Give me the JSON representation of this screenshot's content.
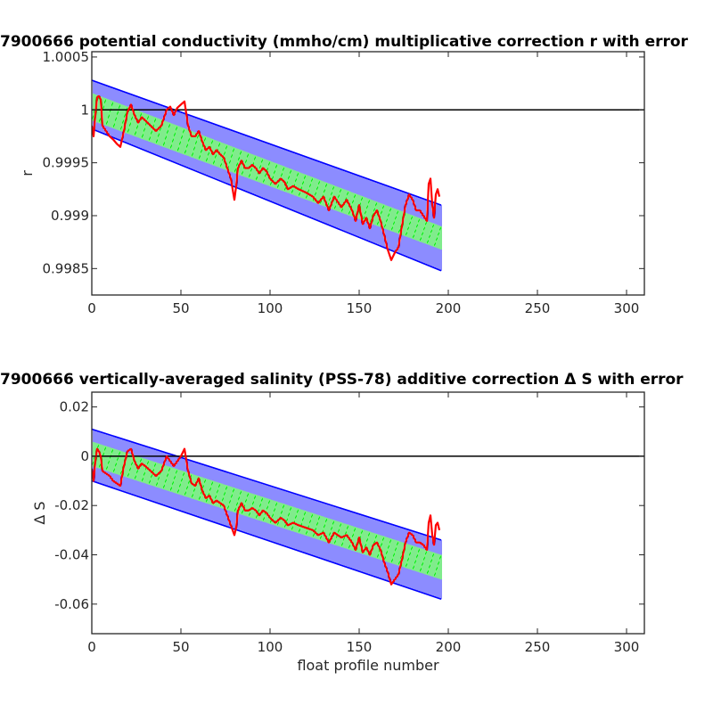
{
  "chart_data": [
    {
      "type": "line",
      "title": "7900666 potential conductivity (mmho/cm) multiplicative correction r with error",
      "xlabel": "",
      "ylabel": "r",
      "xlim": [
        0,
        310
      ],
      "ylim": [
        0.99825,
        1.00055
      ],
      "xticks": [
        0,
        50,
        100,
        150,
        200,
        250,
        300
      ],
      "xtick_labels": [
        "0",
        "50",
        "100",
        "150",
        "200",
        "250",
        "300"
      ],
      "yticks": [
        0.9985,
        0.999,
        0.9995,
        1,
        1.0005
      ],
      "ytick_labels": [
        "0.9985",
        "0.999",
        "0.9995",
        "1",
        "1.0005"
      ],
      "reference_line": 1,
      "x_end": 196,
      "envelope_outer": {
        "start_lower": 0.99982,
        "start_upper": 1.00028,
        "end_lower": 0.99848,
        "end_upper": 0.9991
      },
      "envelope_inner": {
        "start_lower": 0.9999,
        "start_upper": 1.00016,
        "end_lower": 0.99868,
        "end_upper": 0.9989
      },
      "series": [
        {
          "x": [
            0,
            1,
            2,
            3,
            4,
            5,
            6,
            8,
            10,
            12,
            14,
            16,
            18,
            20,
            22,
            24,
            26,
            28,
            30,
            33,
            36,
            39,
            42,
            44,
            46,
            48,
            50,
            52,
            54,
            56,
            58,
            60,
            62,
            64,
            66,
            68,
            70,
            72,
            74,
            76,
            78,
            79,
            80,
            81,
            82,
            84,
            86,
            88,
            90,
            92,
            94,
            96,
            98,
            100,
            103,
            106,
            108,
            110,
            113,
            116,
            120,
            124,
            127,
            130,
            133,
            136,
            140,
            143,
            146,
            148,
            150,
            152,
            154,
            156,
            158,
            160,
            162,
            164,
            166,
            168,
            170,
            172,
            174,
            176,
            178,
            180,
            182,
            184,
            186,
            188,
            189,
            190,
            191,
            192,
            193,
            194,
            195
          ],
          "y": [
            0.99985,
            0.99975,
            0.99995,
            1.00012,
            1.00013,
            1.0001,
            0.99985,
            0.9998,
            0.99975,
            0.99972,
            0.99968,
            0.99965,
            0.9998,
            0.99998,
            1.00005,
            0.99995,
            0.99988,
            0.99993,
            0.9999,
            0.99985,
            0.9998,
            0.99985,
            1.0,
            1.00003,
            0.99995,
            1.00002,
            1.00005,
            1.00008,
            0.99985,
            0.99975,
            0.99975,
            0.9998,
            0.9997,
            0.99962,
            0.99965,
            0.99958,
            0.99962,
            0.99958,
            0.99955,
            0.99945,
            0.99935,
            0.99925,
            0.99915,
            0.99928,
            0.99945,
            0.99952,
            0.99945,
            0.99945,
            0.99948,
            0.99945,
            0.9994,
            0.99945,
            0.99942,
            0.99935,
            0.9993,
            0.99935,
            0.99932,
            0.99925,
            0.99928,
            0.99925,
            0.99922,
            0.99918,
            0.99912,
            0.99918,
            0.99905,
            0.99918,
            0.99908,
            0.99915,
            0.99905,
            0.99895,
            0.9991,
            0.99892,
            0.99898,
            0.99888,
            0.999,
            0.99905,
            0.99895,
            0.99882,
            0.99868,
            0.99858,
            0.99865,
            0.9987,
            0.9989,
            0.9991,
            0.9992,
            0.99915,
            0.99905,
            0.99905,
            0.999,
            0.99895,
            0.9993,
            0.99935,
            0.9991,
            0.99898,
            0.9992,
            0.99925,
            0.99918
          ]
        }
      ]
    },
    {
      "type": "line",
      "title": "7900666 vertically-averaged salinity (PSS-78) additive correction Δ S with error",
      "xlabel": "float profile number",
      "ylabel": "Δ S",
      "xlim": [
        0,
        310
      ],
      "ylim": [
        -0.072,
        0.026
      ],
      "xticks": [
        0,
        50,
        100,
        150,
        200,
        250,
        300
      ],
      "xtick_labels": [
        "0",
        "50",
        "100",
        "150",
        "200",
        "250",
        "300"
      ],
      "yticks": [
        -0.06,
        -0.04,
        -0.02,
        0,
        0.02
      ],
      "ytick_labels": [
        "-0.06",
        "-0.04",
        "-0.02",
        "0",
        "0.02"
      ],
      "reference_line": 0,
      "x_end": 196,
      "envelope_outer": {
        "start_lower": -0.01,
        "start_upper": 0.011,
        "end_lower": -0.058,
        "end_upper": -0.034
      },
      "envelope_inner": {
        "start_lower": -0.004,
        "start_upper": 0.006,
        "end_lower": -0.05,
        "end_upper": -0.04
      },
      "series": [
        {
          "x": [
            0,
            1,
            2,
            3,
            4,
            5,
            6,
            8,
            10,
            12,
            14,
            16,
            18,
            20,
            22,
            24,
            26,
            28,
            30,
            33,
            36,
            39,
            42,
            44,
            46,
            48,
            50,
            52,
            54,
            56,
            58,
            60,
            62,
            64,
            66,
            68,
            70,
            72,
            74,
            76,
            78,
            79,
            80,
            81,
            82,
            84,
            86,
            88,
            90,
            92,
            94,
            96,
            98,
            100,
            103,
            106,
            108,
            110,
            113,
            116,
            120,
            124,
            127,
            130,
            133,
            136,
            140,
            143,
            146,
            148,
            150,
            152,
            154,
            156,
            158,
            160,
            162,
            164,
            166,
            168,
            170,
            172,
            174,
            176,
            178,
            180,
            182,
            184,
            186,
            188,
            189,
            190,
            191,
            192,
            193,
            194,
            195
          ],
          "y": [
            -0.005,
            -0.01,
            -0.002,
            0.003,
            0.002,
            0.0,
            -0.006,
            -0.007,
            -0.008,
            -0.01,
            -0.011,
            -0.012,
            -0.004,
            0.002,
            0.003,
            -0.002,
            -0.005,
            -0.003,
            -0.004,
            -0.006,
            -0.008,
            -0.006,
            0.0,
            -0.002,
            -0.004,
            -0.002,
            0.0,
            0.003,
            -0.006,
            -0.011,
            -0.012,
            -0.009,
            -0.014,
            -0.017,
            -0.016,
            -0.019,
            -0.018,
            -0.019,
            -0.02,
            -0.024,
            -0.028,
            -0.03,
            -0.032,
            -0.029,
            -0.022,
            -0.019,
            -0.022,
            -0.022,
            -0.021,
            -0.022,
            -0.024,
            -0.022,
            -0.023,
            -0.025,
            -0.027,
            -0.025,
            -0.026,
            -0.028,
            -0.027,
            -0.028,
            -0.029,
            -0.03,
            -0.032,
            -0.031,
            -0.035,
            -0.031,
            -0.033,
            -0.032,
            -0.035,
            -0.038,
            -0.033,
            -0.039,
            -0.037,
            -0.04,
            -0.036,
            -0.035,
            -0.038,
            -0.043,
            -0.047,
            -0.052,
            -0.05,
            -0.048,
            -0.042,
            -0.035,
            -0.031,
            -0.032,
            -0.035,
            -0.035,
            -0.036,
            -0.038,
            -0.027,
            -0.024,
            -0.032,
            -0.036,
            -0.028,
            -0.027,
            -0.03
          ]
        }
      ]
    }
  ]
}
